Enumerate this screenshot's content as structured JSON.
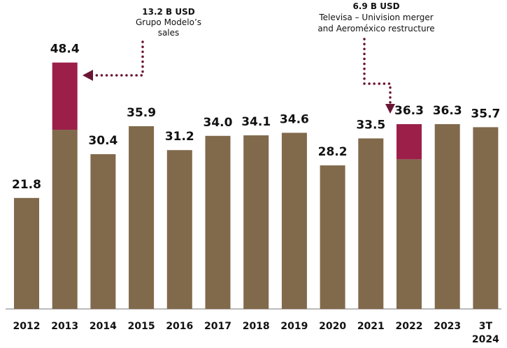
{
  "chart_data": {
    "type": "bar",
    "categories": [
      "2012",
      "2013",
      "2014",
      "2015",
      "2016",
      "2017",
      "2018",
      "2019",
      "2020",
      "2021",
      "2022",
      "2023",
      "3T 2024"
    ],
    "series": [
      {
        "values": [
          21.8,
          35.2,
          30.4,
          35.9,
          31.2,
          34.0,
          34.1,
          34.6,
          28.2,
          33.5,
          29.4,
          36.3,
          35.7
        ]
      },
      {
        "values": [
          0,
          13.2,
          0,
          0,
          0,
          0,
          0,
          0,
          0,
          0,
          6.9,
          0,
          0
        ]
      }
    ],
    "data_labels": [
      "21.8",
      "48.4",
      "30.4",
      "35.9",
      "31.2",
      "34.0",
      "34.1",
      "34.6",
      "28.2",
      "33.5",
      "36.3",
      "36.3",
      "35.7"
    ],
    "annotations": [
      {
        "category": "2013",
        "title": "13.2 B USD",
        "lines": [
          "Grupo Modelo’s",
          "sales"
        ]
      },
      {
        "category": "2022",
        "title": "6.9 B USD",
        "lines": [
          "Televisa – Univision merger",
          "and Aeroméxico restructure"
        ]
      }
    ],
    "ylim": [
      0,
      55
    ],
    "grid": false,
    "colors": {
      "base": "#81694b",
      "highlight": "#9c1f4a",
      "arrow": "#6b1535",
      "axis": "#bcbcbc",
      "text": "#111111"
    }
  }
}
